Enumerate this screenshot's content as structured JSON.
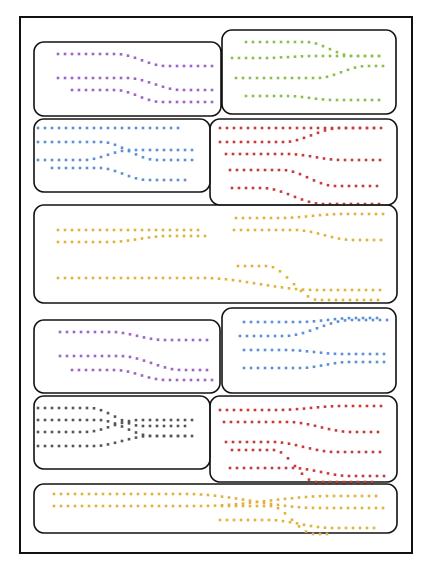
{
  "diagram": {
    "frame": {
      "stroke": "#111111"
    },
    "dot_style": "square-dotted",
    "colors": {
      "purple": "#9a64c8",
      "green": "#8cbf4a",
      "blue": "#5b8fd6",
      "red": "#c83a3a",
      "yellow": "#e0b23a",
      "gray": "#555555"
    },
    "panels": [
      {
        "id": "p1",
        "color": "purple"
      },
      {
        "id": "p2",
        "color": "green"
      },
      {
        "id": "p3",
        "color": "blue"
      },
      {
        "id": "p4",
        "color": "red"
      },
      {
        "id": "p5",
        "color": "yellow"
      },
      {
        "id": "p6",
        "color": "purple"
      },
      {
        "id": "p7",
        "color": "blue"
      },
      {
        "id": "p8",
        "color": "gray"
      },
      {
        "id": "p9",
        "color": "red"
      },
      {
        "id": "p10",
        "color": "yellow"
      }
    ]
  }
}
